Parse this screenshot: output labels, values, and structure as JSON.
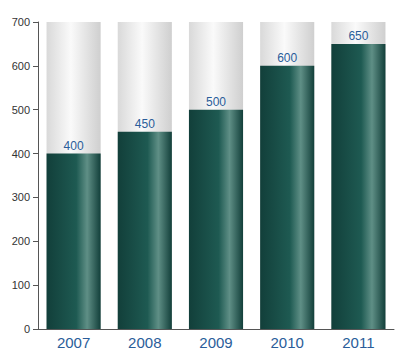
{
  "chart_data": {
    "type": "bar",
    "categories": [
      "2007",
      "2008",
      "2009",
      "2010",
      "2011"
    ],
    "values": [
      400,
      450,
      500,
      600,
      650
    ],
    "color": "#1e5a52",
    "ylim": [
      0,
      700
    ],
    "yticks": [
      0,
      100,
      200,
      300,
      400,
      500,
      600,
      700
    ],
    "grid": false,
    "data_labels": true
  }
}
